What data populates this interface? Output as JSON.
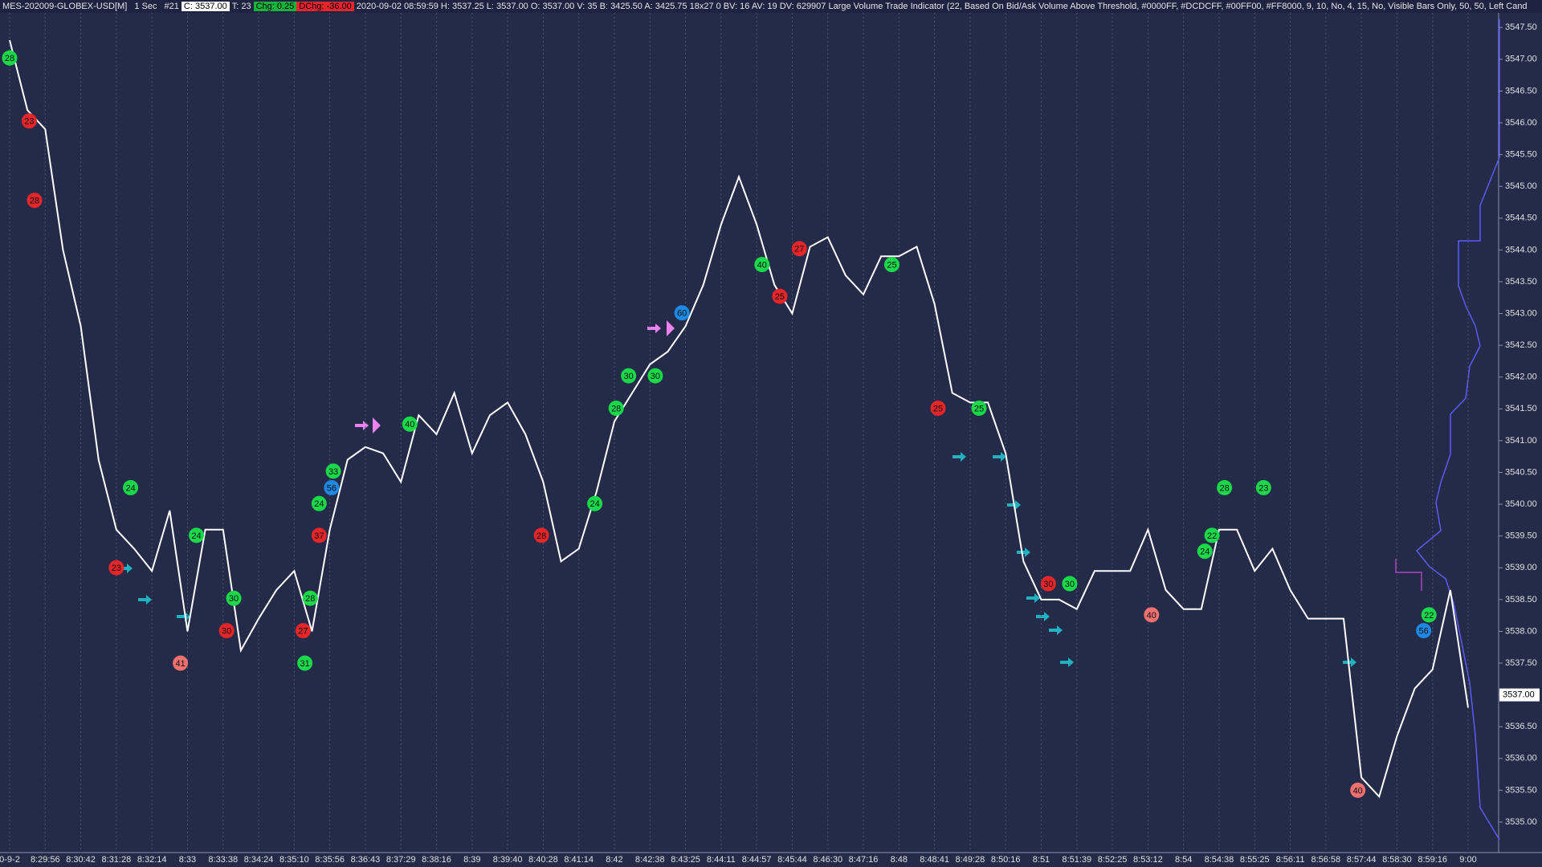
{
  "header": {
    "symbol": "MES-202009-GLOBEX-USD[M]",
    "interval": "1 Sec",
    "chart_number": "#21",
    "close": "C: 3537.00",
    "trades": "T: 23",
    "change": "Chg: 0.25",
    "day_change": "DChg: -36.00",
    "study": "2020-09-02 08:59:59 H: 3537.25 L: 3537.00 O: 3537.00 V: 35 B: 3425.50 A: 3425.75 18x27 0 BV: 16 AV: 19 DV: 629907 Large Volume Trade Indicator  (22, Based On Bid/Ask Volume Above Threshold, #0000FF, #DCDCFF, #00FF00, #FF8000, 9, 10, No, 4, 15, No, Visible Bars Only, 50, 50, Left Cand"
  },
  "chart_data": {
    "type": "line",
    "categories": [
      "0-9-2",
      null,
      "8:29:56",
      null,
      "8:30:42",
      null,
      "8:31:28",
      null,
      "8:32:14",
      null,
      "8:33",
      null,
      "8:33:38",
      null,
      "8:34:24",
      null,
      "8:35:10",
      null,
      "8:35:56",
      null,
      "8:36:43",
      null,
      "8:37:29",
      null,
      "8:38:16",
      null,
      "8:39",
      null,
      "8:39:40",
      null,
      "8:40:28",
      null,
      "8:41:14",
      null,
      "8:42",
      null,
      "8:42:38",
      null,
      "8:43:25",
      null,
      "8:44:11",
      null,
      "8:44:57",
      null,
      "8:45:44",
      null,
      "8:46:30",
      null,
      "8:47:16",
      null,
      "8:48",
      null,
      "8:48:41",
      null,
      "8:49:28",
      null,
      "8:50:16",
      null,
      "8:51",
      null,
      "8:51:39",
      null,
      "8:52:25",
      null,
      "8:53:12",
      null,
      "8:54",
      null,
      "8:54:38",
      null,
      "8:55:25",
      null,
      "8:56:11",
      null,
      "8:56:58",
      null,
      "8:57:44",
      null,
      "8:58:30",
      null,
      "8:59:16",
      null,
      "9:00"
    ],
    "series": [
      {
        "name": "MES-202009-GLOBEX-USD[M]",
        "color": "#ffffff",
        "values": [
          3547.3,
          3546.2,
          3545.9,
          3544.0,
          3542.8,
          3540.7,
          3539.6,
          3539.3,
          3538.95,
          3539.9,
          3538.0,
          3539.6,
          3539.6,
          3537.7,
          3538.2,
          3538.65,
          3538.95,
          3538.0,
          3539.6,
          3540.7,
          3540.9,
          3540.8,
          3540.35,
          3541.4,
          3541.1,
          3541.75,
          3540.8,
          3541.4,
          3541.6,
          3541.1,
          3540.35,
          3539.1,
          3539.3,
          3540.2,
          3541.3,
          3541.75,
          3542.2,
          3542.4,
          3542.8,
          3543.45,
          3544.4,
          3545.15,
          3544.4,
          3543.45,
          3543.0,
          3544.05,
          3544.2,
          3543.6,
          3543.3,
          3543.9,
          3543.9,
          3544.05,
          3543.15,
          3541.75,
          3541.6,
          3541.6,
          3540.8,
          3539.1,
          3538.5,
          3538.5,
          3538.35,
          3538.95,
          3538.95,
          3538.95,
          3539.6,
          3538.65,
          3538.35,
          3538.35,
          3539.6,
          3539.6,
          3538.95,
          3539.3,
          3538.65,
          3538.2,
          3538.2,
          3538.2,
          3535.7,
          3535.4,
          3536.35,
          3537.1,
          3537.4,
          3538.65,
          3536.8
        ]
      }
    ],
    "markers": [
      {
        "x": 0,
        "value": 3547.02,
        "volume": 28,
        "color": "#19d94a"
      },
      {
        "x": 1.1,
        "value": 3546.03,
        "volume": 23,
        "color": "#e8262a"
      },
      {
        "x": 1.4,
        "value": 3544.78,
        "volume": 28,
        "color": "#e8262a"
      },
      {
        "x": 6.8,
        "value": 3540.26,
        "volume": 24,
        "color": "#19d94a"
      },
      {
        "x": 6.0,
        "value": 3539.0,
        "volume": 23,
        "color": "#e8262a"
      },
      {
        "x": 10.5,
        "value": 3539.51,
        "volume": 24,
        "color": "#19d94a"
      },
      {
        "x": 12.6,
        "value": 3538.52,
        "volume": 30,
        "color": "#19d94a"
      },
      {
        "x": 12.2,
        "value": 3538.01,
        "volume": 30,
        "color": "#e8262a"
      },
      {
        "x": 9.6,
        "value": 3537.5,
        "volume": 41,
        "color": "#f07070"
      },
      {
        "x": 18.2,
        "value": 3540.52,
        "volume": 33,
        "color": "#19d94a"
      },
      {
        "x": 18.1,
        "value": 3540.26,
        "volume": 56,
        "color": "#1e88e5"
      },
      {
        "x": 17.4,
        "value": 3540.01,
        "volume": 24,
        "color": "#19d94a"
      },
      {
        "x": 17.4,
        "value": 3539.51,
        "volume": 37,
        "color": "#e8262a"
      },
      {
        "x": 16.9,
        "value": 3538.52,
        "volume": 28,
        "color": "#19d94a"
      },
      {
        "x": 16.5,
        "value": 3538.01,
        "volume": 27,
        "color": "#e8262a"
      },
      {
        "x": 16.6,
        "value": 3537.5,
        "volume": 31,
        "color": "#19d94a"
      },
      {
        "x": 22.5,
        "value": 3541.26,
        "volume": 40,
        "color": "#19d94a"
      },
      {
        "x": 29.9,
        "value": 3539.51,
        "volume": 28,
        "color": "#e8262a"
      },
      {
        "x": 32.9,
        "value": 3540.01,
        "volume": 24,
        "color": "#19d94a"
      },
      {
        "x": 34.1,
        "value": 3541.51,
        "volume": 28,
        "color": "#19d94a"
      },
      {
        "x": 34.8,
        "value": 3542.02,
        "volume": 30,
        "color": "#19d94a"
      },
      {
        "x": 36.3,
        "value": 3542.02,
        "volume": 30,
        "color": "#19d94a"
      },
      {
        "x": 37.8,
        "value": 3543.01,
        "volume": 60,
        "color": "#1e88e5"
      },
      {
        "x": 42.3,
        "value": 3543.77,
        "volume": 40,
        "color": "#19d94a"
      },
      {
        "x": 44.4,
        "value": 3544.02,
        "volume": 27,
        "color": "#e8262a"
      },
      {
        "x": 43.3,
        "value": 3543.27,
        "volume": 25,
        "color": "#e8262a"
      },
      {
        "x": 49.6,
        "value": 3543.77,
        "volume": 25,
        "color": "#19d94a"
      },
      {
        "x": 52.2,
        "value": 3541.51,
        "volume": 25,
        "color": "#e8262a"
      },
      {
        "x": 54.5,
        "value": 3541.51,
        "volume": 25,
        "color": "#19d94a"
      },
      {
        "x": 58.4,
        "value": 3538.75,
        "volume": 30,
        "color": "#e8262a"
      },
      {
        "x": 59.6,
        "value": 3538.75,
        "volume": 30,
        "color": "#19d94a"
      },
      {
        "x": 64.2,
        "value": 3538.26,
        "volume": 40,
        "color": "#f07070"
      },
      {
        "x": 68.3,
        "value": 3540.26,
        "volume": 28,
        "color": "#19d94a"
      },
      {
        "x": 70.5,
        "value": 3540.26,
        "volume": 23,
        "color": "#19d94a"
      },
      {
        "x": 67.6,
        "value": 3539.51,
        "volume": 22,
        "color": "#19d94a"
      },
      {
        "x": 67.2,
        "value": 3539.26,
        "volume": 24,
        "color": "#19d94a"
      },
      {
        "x": 79.8,
        "value": 3538.26,
        "volume": 22,
        "color": "#19d94a"
      },
      {
        "x": 79.5,
        "value": 3538.01,
        "volume": 56,
        "color": "#1e88e5"
      },
      {
        "x": 75.8,
        "value": 3535.5,
        "volume": 40,
        "color": "#f07070"
      }
    ],
    "last_price": {
      "value": 3537,
      "label": "3537.00"
    },
    "ylim": [
      3534.52,
      3547.73
    ],
    "yticks": [
      {
        "value": 3535,
        "label": "3535.00"
      },
      {
        "value": 3535.5,
        "label": "3535.50"
      },
      {
        "value": 3536,
        "label": "3536.00"
      },
      {
        "value": 3536.5,
        "label": "3536.50"
      },
      {
        "value": 3537,
        "label": "3537.00"
      },
      {
        "value": 3537.5,
        "label": "3537.50"
      },
      {
        "value": 3538,
        "label": "3538.00"
      },
      {
        "value": 3538.5,
        "label": "3538.50"
      },
      {
        "value": 3539,
        "label": "3539.00"
      },
      {
        "value": 3539.5,
        "label": "3539.50"
      },
      {
        "value": 3540,
        "label": "3540.00"
      },
      {
        "value": 3540.5,
        "label": "3540.50"
      },
      {
        "value": 3541,
        "label": "3541.00"
      },
      {
        "value": 3541.5,
        "label": "3541.50"
      },
      {
        "value": 3542,
        "label": "3542.00"
      },
      {
        "value": 3542.5,
        "label": "3542.50"
      },
      {
        "value": 3543,
        "label": "3543.00"
      },
      {
        "value": 3543.5,
        "label": "3543.50"
      },
      {
        "value": 3544,
        "label": "3544.00"
      },
      {
        "value": 3544.5,
        "label": "3544.50"
      },
      {
        "value": 3545,
        "label": "3545.00"
      },
      {
        "value": 3545.5,
        "label": "3545.50"
      },
      {
        "value": 3546,
        "label": "3546.00"
      },
      {
        "value": 3546.5,
        "label": "3546.50"
      },
      {
        "value": 3547,
        "label": "3547.00"
      },
      {
        "value": 3547.5,
        "label": "3547.50"
      }
    ],
    "grid": true
  }
}
